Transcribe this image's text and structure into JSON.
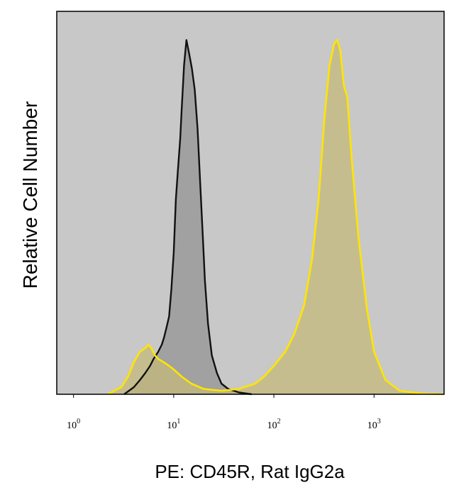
{
  "chart_data": {
    "type": "area",
    "title": "",
    "xlabel": "PE: CD45R, Rat IgG2a",
    "ylabel": "Relative Cell Number",
    "x_scale": "log",
    "xlim": [
      0.68,
      5000
    ],
    "ylim": [
      0,
      1
    ],
    "grid": false,
    "legend": "none",
    "colors": {
      "plot_background": "#c8c8c8",
      "isotype_fill": "#9a9a9a",
      "isotype_line": "#111111",
      "cd45r_fill": "#c6b97c",
      "cd45r_line": "#ffe500"
    },
    "x_ticks": [
      {
        "base": "10",
        "exp": "0",
        "value": 1
      },
      {
        "base": "10",
        "exp": "1",
        "value": 10
      },
      {
        "base": "10",
        "exp": "2",
        "value": 100
      },
      {
        "base": "10",
        "exp": "3",
        "value": 1000
      }
    ],
    "series": [
      {
        "color": "#111111",
        "x": [
          3.2,
          4.0,
          4.6,
          5.2,
          5.8,
          6.3,
          7.0,
          7.6,
          8.0,
          8.5,
          9.0,
          9.5,
          10.0,
          10.5,
          11.0,
          11.6,
          12.0,
          12.7,
          13.4,
          14.3,
          15.2,
          16.2,
          17.3,
          18.5,
          19.5,
          20.5,
          22.0,
          24.0,
          27.0,
          30.0,
          35.0,
          45.0,
          60.0
        ],
        "y": [
          0.0,
          0.02,
          0.04,
          0.06,
          0.08,
          0.1,
          0.12,
          0.14,
          0.16,
          0.19,
          0.22,
          0.3,
          0.4,
          0.55,
          0.63,
          0.72,
          0.8,
          0.93,
          1.0,
          0.96,
          0.92,
          0.86,
          0.75,
          0.58,
          0.45,
          0.32,
          0.2,
          0.11,
          0.06,
          0.03,
          0.015,
          0.005,
          0.0
        ]
      },
      {
        "color": "#ffe500",
        "x": [
          2.2,
          3.0,
          3.5,
          4.0,
          4.6,
          5.2,
          5.6,
          6.0,
          6.5,
          7.0,
          8.0,
          9.0,
          10.0,
          12.0,
          15.0,
          20.0,
          30.0,
          45.0,
          65.0,
          80.0,
          100.0,
          130.0,
          160.0,
          200.0,
          240.0,
          280.0,
          320.0,
          360.0,
          400.0,
          430.0,
          460.0,
          500.0,
          540.0,
          600.0,
          700.0,
          850.0,
          1000.0,
          1300.0,
          1800.0,
          3000.0,
          5000.0
        ],
        "y": [
          0.0,
          0.02,
          0.05,
          0.09,
          0.12,
          0.13,
          0.14,
          0.13,
          0.11,
          0.1,
          0.09,
          0.08,
          0.07,
          0.05,
          0.03,
          0.015,
          0.01,
          0.015,
          0.03,
          0.05,
          0.08,
          0.12,
          0.17,
          0.25,
          0.38,
          0.55,
          0.78,
          0.93,
          0.99,
          1.0,
          0.97,
          0.87,
          0.84,
          0.66,
          0.44,
          0.24,
          0.12,
          0.04,
          0.01,
          0.002,
          0.0
        ]
      }
    ]
  }
}
